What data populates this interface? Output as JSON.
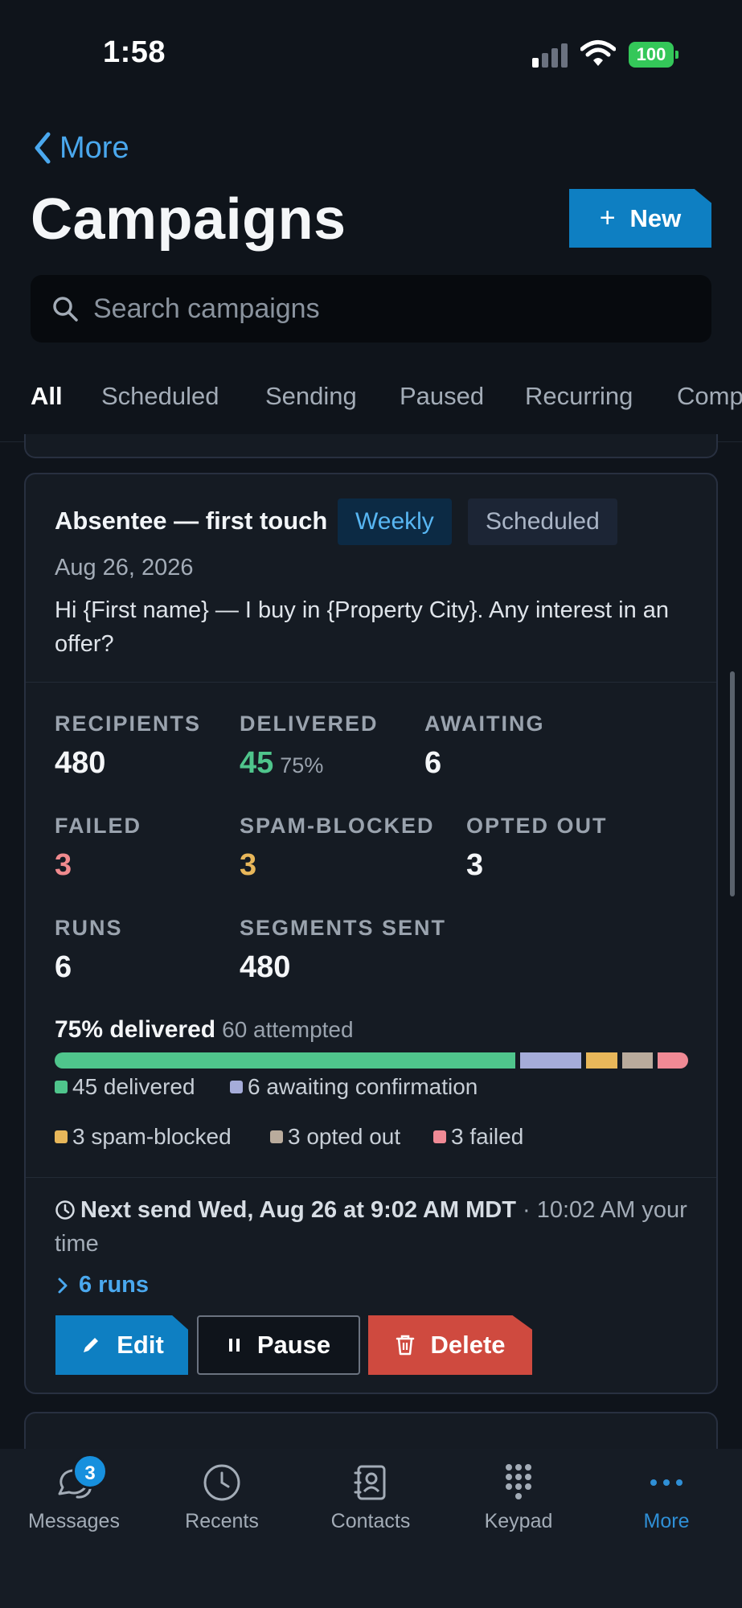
{
  "status_bar": {
    "time": "1:58",
    "battery": "100"
  },
  "header": {
    "back_label": "More",
    "title": "Campaigns",
    "new_button": "New",
    "search_placeholder": "Search campaigns"
  },
  "tabs": [
    {
      "label": "All",
      "active": true
    },
    {
      "label": "Scheduled"
    },
    {
      "label": "Sending"
    },
    {
      "label": "Paused"
    },
    {
      "label": "Recurring"
    },
    {
      "label": "Comp"
    }
  ],
  "campaign": {
    "name": "Absentee — first touch",
    "badges": [
      "Weekly",
      "Scheduled"
    ],
    "date": "Aug 26, 2026",
    "message": "Hi {First name} — I buy in {Property City}. Any interest in an offer?",
    "stats": {
      "recipients": {
        "label": "RECIPIENTS",
        "value": "480"
      },
      "delivered": {
        "label": "DELIVERED",
        "value": "45",
        "pct": "75%"
      },
      "awaiting": {
        "label": "AWAITING",
        "value": "6"
      },
      "failed": {
        "label": "FAILED",
        "value": "3"
      },
      "spam_blocked": {
        "label": "SPAM-BLOCKED",
        "value": "3"
      },
      "opted_out": {
        "label": "OPTED OUT",
        "value": "3"
      },
      "runs": {
        "label": "RUNS",
        "value": "6"
      },
      "segments_sent": {
        "label": "SEGMENTS SENT",
        "value": "480"
      }
    },
    "progress": {
      "headline": "75% delivered",
      "attempted": "60 attempted",
      "segments": [
        {
          "label": "45 delivered",
          "count": 45,
          "color": "#4fc58c"
        },
        {
          "label": "6 awaiting confirmation",
          "count": 6,
          "color": "#a5acd9"
        },
        {
          "label": "3 spam-blocked",
          "count": 3,
          "color": "#e8b75a"
        },
        {
          "label": "3 opted out",
          "count": 3,
          "color": "#b9ab9c"
        },
        {
          "label": "3 failed",
          "count": 3,
          "color": "#f08a95"
        }
      ]
    },
    "next_send": {
      "main": "Next send Wed, Aug 26 at 9:02 AM MDT",
      "local": " · 10:02 AM your time"
    },
    "runs_link": "6 runs",
    "actions": {
      "edit": "Edit",
      "pause": "Pause",
      "delete": "Delete"
    }
  },
  "tabbar": {
    "messages": {
      "label": "Messages",
      "badge": "3"
    },
    "recents": "Recents",
    "contacts": "Contacts",
    "keypad": "Keypad",
    "more": "More"
  },
  "colors": {
    "accent": "#0e7fc2",
    "link": "#4aa8ee",
    "danger": "#cf4a3f",
    "background": "#0f141b"
  }
}
